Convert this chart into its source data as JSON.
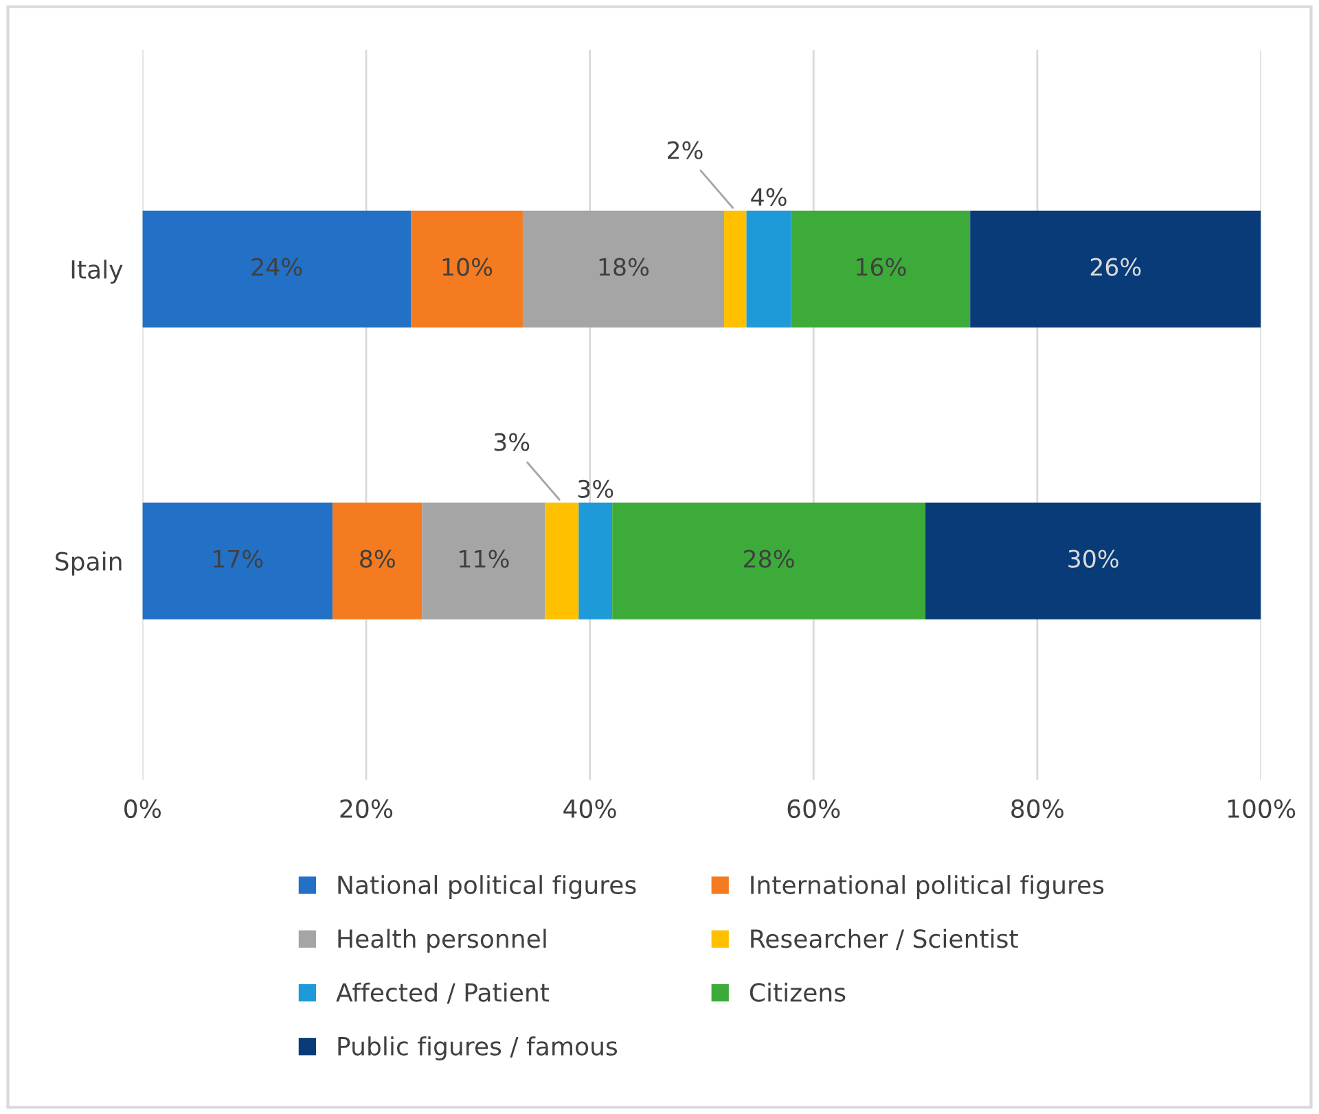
{
  "chart_data": {
    "type": "bar",
    "orientation": "horizontal",
    "stacked": true,
    "categories": [
      "Italy",
      "Spain"
    ],
    "series": [
      {
        "name": "National political figures",
        "color": "#2271c7",
        "values": [
          24,
          17
        ],
        "value_labels": [
          "24%",
          "17%"
        ]
      },
      {
        "name": "International political figures",
        "color": "#f47b20",
        "values": [
          10,
          8
        ],
        "value_labels": [
          "10%",
          "8%"
        ]
      },
      {
        "name": "Health personnel",
        "color": "#a5a5a5",
        "values": [
          18,
          11
        ],
        "value_labels": [
          "18%",
          "11%"
        ]
      },
      {
        "name": "Researcher / Scientist",
        "color": "#ffc000",
        "values": [
          2,
          3
        ],
        "value_labels": [
          "2%",
          "3%"
        ]
      },
      {
        "name": "Affected / Patient",
        "color": "#1e9ad8",
        "values": [
          4,
          3
        ],
        "value_labels": [
          "4%",
          "3%"
        ]
      },
      {
        "name": "Citizens",
        "color": "#3dab3a",
        "values": [
          16,
          28
        ],
        "value_labels": [
          "16%",
          "28%"
        ]
      },
      {
        "name": "Public figures / famous",
        "color": "#083b78",
        "values": [
          26,
          30
        ],
        "value_labels": [
          "26%",
          "30%"
        ]
      }
    ],
    "xlim": [
      0,
      100
    ],
    "xticks": [
      {
        "value": 0,
        "label": "0%"
      },
      {
        "value": 20,
        "label": "20%"
      },
      {
        "value": 40,
        "label": "40%"
      },
      {
        "value": 60,
        "label": "60%"
      },
      {
        "value": 80,
        "label": "80%"
      },
      {
        "value": 100,
        "label": "100%"
      }
    ],
    "grid": "x",
    "legend": "bottom"
  }
}
